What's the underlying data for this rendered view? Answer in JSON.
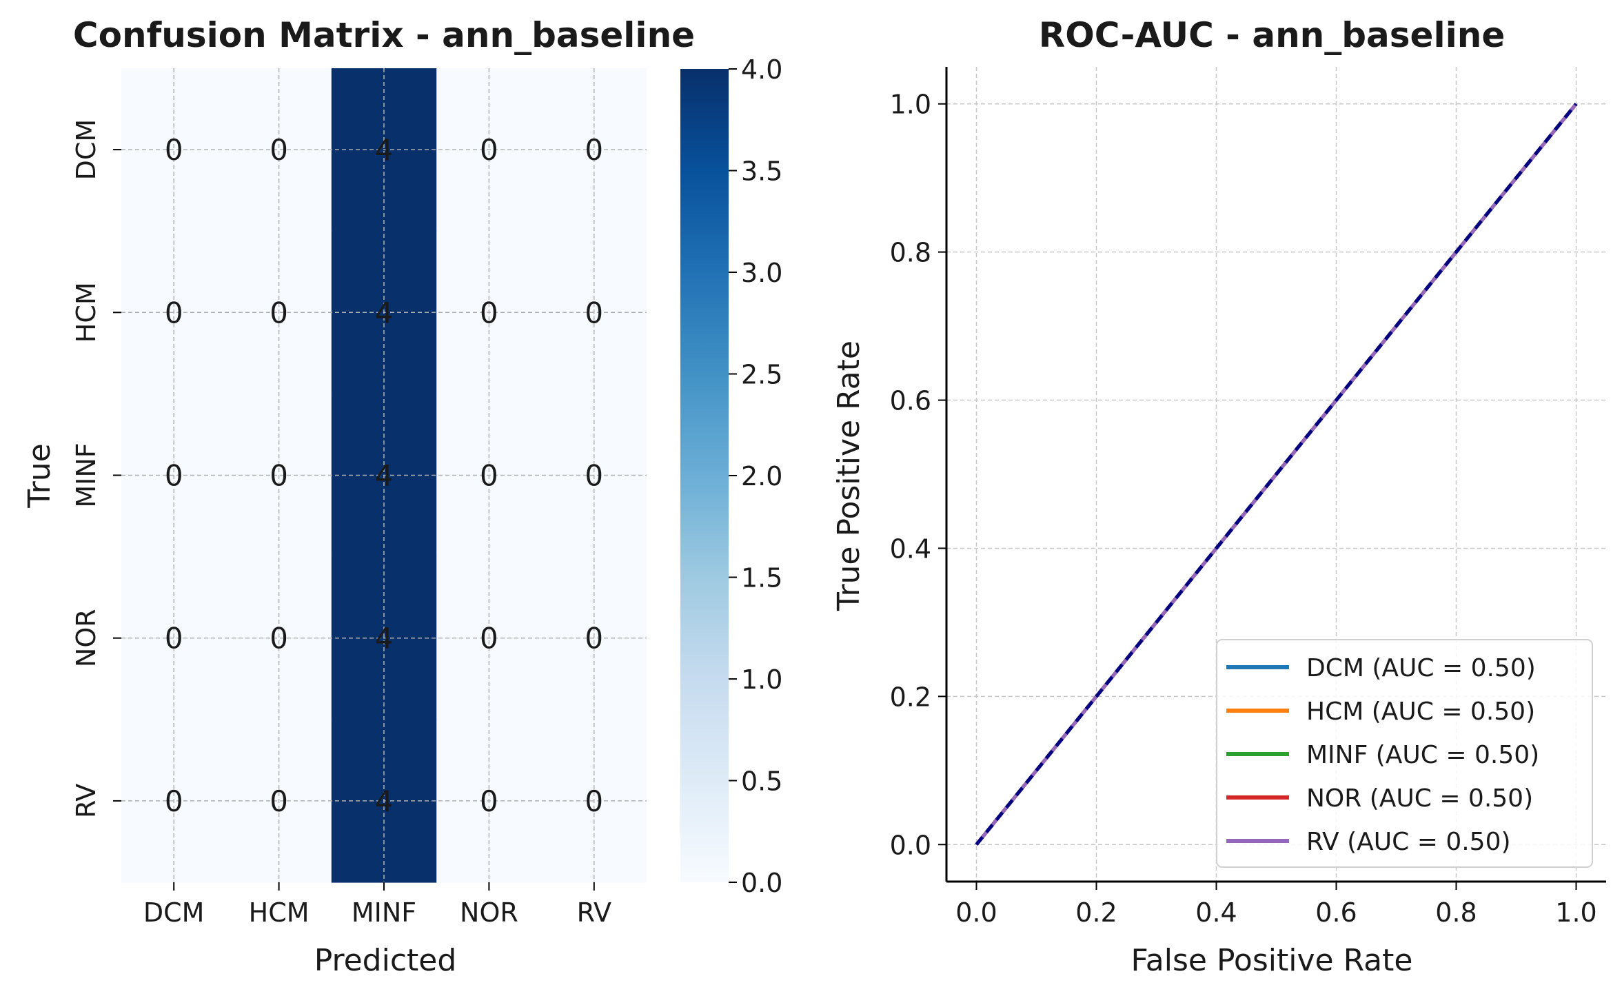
{
  "chart_data": [
    {
      "type": "heatmap",
      "title": "Confusion Matrix - ann_baseline",
      "xlabel": "Predicted",
      "ylabel": "True",
      "x_categories": [
        "DCM",
        "HCM",
        "MINF",
        "NOR",
        "RV"
      ],
      "y_categories": [
        "DCM",
        "HCM",
        "MINF",
        "NOR",
        "RV"
      ],
      "values": [
        [
          0,
          0,
          4,
          0,
          0
        ],
        [
          0,
          0,
          4,
          0,
          0
        ],
        [
          0,
          0,
          4,
          0,
          0
        ],
        [
          0,
          0,
          4,
          0,
          0
        ],
        [
          0,
          0,
          4,
          0,
          0
        ]
      ],
      "colormap": "Blues",
      "color_range": [
        0,
        4
      ],
      "colorbar_ticks": [
        "0.0",
        "0.5",
        "1.0",
        "1.5",
        "2.0",
        "2.5",
        "3.0",
        "3.5",
        "4.0"
      ],
      "grid": true
    },
    {
      "type": "line",
      "title": "ROC-AUC - ann_baseline",
      "xlabel": "False Positive Rate",
      "ylabel": "True Positive Rate",
      "xlim": [
        -0.05,
        1.05
      ],
      "ylim": [
        -0.05,
        1.05
      ],
      "x_ticks": [
        "0.0",
        "0.2",
        "0.4",
        "0.6",
        "0.8",
        "1.0"
      ],
      "y_ticks": [
        "0.0",
        "0.2",
        "0.4",
        "0.6",
        "0.8",
        "1.0"
      ],
      "grid": true,
      "legend_position": "lower-right",
      "series": [
        {
          "name": "DCM (AUC = 0.50)",
          "color": "#1f77b4",
          "x": [
            0,
            1
          ],
          "y": [
            0,
            1
          ]
        },
        {
          "name": "HCM (AUC = 0.50)",
          "color": "#ff7f0e",
          "x": [
            0,
            1
          ],
          "y": [
            0,
            1
          ]
        },
        {
          "name": "MINF (AUC = 0.50)",
          "color": "#2ca02c",
          "x": [
            0,
            1
          ],
          "y": [
            0,
            1
          ]
        },
        {
          "name": "NOR (AUC = 0.50)",
          "color": "#d62728",
          "x": [
            0,
            1
          ],
          "y": [
            0,
            1
          ]
        },
        {
          "name": "RV (AUC = 0.50)",
          "color": "#9467bd",
          "x": [
            0,
            1
          ],
          "y": [
            0,
            1
          ]
        }
      ],
      "reference_line": {
        "color": "#000080",
        "style": "dashed",
        "x": [
          0,
          1
        ],
        "y": [
          0,
          1
        ]
      }
    }
  ]
}
